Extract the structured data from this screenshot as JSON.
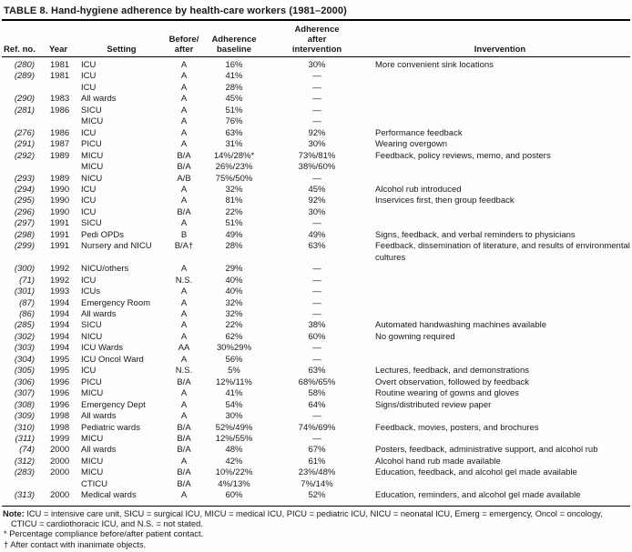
{
  "title": "TABLE 8. Hand-hygiene adherence by health-care workers (1981–2000)",
  "table": {
    "headers": {
      "ref_no": "Ref. no.",
      "year": "Year",
      "setting": "Setting",
      "before_after": "Before/\nafter",
      "adherence_baseline": "Adherence\nbaseline",
      "adherence_after": "Adherence\nafter\nintervention",
      "intervention": "Invervention"
    },
    "rows": [
      [
        "(280)",
        "1981",
        "ICU",
        "A",
        "16%",
        "30%",
        "More convenient sink locations"
      ],
      [
        "(289)",
        "1981",
        "ICU",
        "A",
        "41%",
        "—",
        ""
      ],
      [
        "",
        "",
        "ICU",
        "A",
        "28%",
        "—",
        ""
      ],
      [
        "(290)",
        "1983",
        "All wards",
        "A",
        "45%",
        "—",
        ""
      ],
      [
        "(281)",
        "1986",
        "SICU",
        "A",
        "51%",
        "—",
        ""
      ],
      [
        "",
        "",
        "MICU",
        "A",
        "76%",
        "—",
        ""
      ],
      [
        "(276)",
        "1986",
        "ICU",
        "A",
        "63%",
        "92%",
        "Performance feedback"
      ],
      [
        "(291)",
        "1987",
        "PICU",
        "A",
        "31%",
        "30%",
        "Wearing overgown"
      ],
      [
        "(292)",
        "1989",
        "MICU",
        "B/A",
        "14%/28%*",
        "73%/81%",
        "Feedback, policy reviews, memo, and posters"
      ],
      [
        "",
        "",
        "MICU",
        "B/A",
        "26%/23%",
        "38%/60%",
        ""
      ],
      [
        "(293)",
        "1989",
        "NICU",
        "A/B",
        "75%/50%",
        "—",
        ""
      ],
      [
        "(294)",
        "1990",
        "ICU",
        "A",
        "32%",
        "45%",
        "Alcohol rub introduced"
      ],
      [
        "(295)",
        "1990",
        "ICU",
        "A",
        "81%",
        "92%",
        "Inservices first, then group feedback"
      ],
      [
        "(296)",
        "1990",
        "ICU",
        "B/A",
        "22%",
        "30%",
        ""
      ],
      [
        "(297)",
        "1991",
        "SICU",
        "A",
        "51%",
        "—",
        ""
      ],
      [
        "(298)",
        "1991",
        "Pedi OPDs",
        "B",
        "49%",
        "49%",
        "Signs, feedback, and verbal reminders to physicians"
      ],
      [
        "(299)",
        "1991",
        "Nursery and NICU",
        "B/A†",
        "28%",
        "63%",
        "Feedback, dissemination of literature, and results of environmental cultures"
      ],
      [
        "(300)",
        "1992",
        "NICU/others",
        "A",
        "29%",
        "—",
        ""
      ],
      [
        "(71)",
        "1992",
        "ICU",
        "N.S.",
        "40%",
        "—",
        ""
      ],
      [
        "(301)",
        "1993",
        "ICUs",
        "A",
        "40%",
        "—",
        ""
      ],
      [
        "(87)",
        "1994",
        "Emergency Room",
        "A",
        "32%",
        "—",
        ""
      ],
      [
        "(86)",
        "1994",
        "All wards",
        "A",
        "32%",
        "—",
        ""
      ],
      [
        "(285)",
        "1994",
        "SICU",
        "A",
        "22%",
        "38%",
        "Automated handwashing machines available"
      ],
      [
        "(302)",
        "1994",
        "NICU",
        "A",
        "62%",
        "60%",
        "No gowning required"
      ],
      [
        "(303)",
        "1994",
        "ICU Wards",
        "AA",
        "30%29%",
        "—",
        ""
      ],
      [
        "(304)",
        "1995",
        "ICU Oncol Ward",
        "A",
        "56%",
        "—",
        ""
      ],
      [
        "(305)",
        "1995",
        "ICU",
        "N.S.",
        "5%",
        "63%",
        "Lectures, feedback, and demonstrations"
      ],
      [
        "(306)",
        "1996",
        "PICU",
        "B/A",
        "12%/11%",
        "68%/65%",
        "Overt observation, followed by feedback"
      ],
      [
        "(307)",
        "1996",
        "MICU",
        "A",
        "41%",
        "58%",
        "Routine wearing of gowns and gloves"
      ],
      [
        "(308)",
        "1996",
        "Emergency Dept",
        "A",
        "54%",
        "64%",
        "Signs/distributed review paper"
      ],
      [
        "(309)",
        "1998",
        "All wards",
        "A",
        "30%",
        "—",
        ""
      ],
      [
        "(310)",
        "1998",
        "Pediatric wards",
        "B/A",
        "52%/49%",
        "74%/69%",
        "Feedback, movies, posters, and brochures"
      ],
      [
        "(311)",
        "1999",
        "MICU",
        "B/A",
        "12%/55%",
        "—",
        ""
      ],
      [
        "(74)",
        "2000",
        "All wards",
        "B/A",
        "48%",
        "67%",
        "Posters, feedback, administrative support, and alcohol rub"
      ],
      [
        "(312)",
        "2000",
        "MICU",
        "A",
        "42%",
        "61%",
        "Alcohol hand rub made available"
      ],
      [
        "(283)",
        "2000",
        "MICU",
        "B/A",
        "10%/22%",
        "23%/48%",
        "Education, feedback, and alcohol gel made available"
      ],
      [
        "",
        "",
        "CTICU",
        "B/A",
        "4%/13%",
        "7%/14%",
        ""
      ],
      [
        "(313)",
        "2000",
        "Medical wards",
        "A",
        "60%",
        "52%",
        "Education, reminders, and alcohol gel made available"
      ]
    ]
  },
  "footnotes": {
    "note_label": "Note:",
    "note_text": " ICU = intensive care unit, SICU = surgical ICU, MICU = medical ICU, PICU = pediatric ICU, NICU = neonatal ICU, Emerg = emergency, Oncol = oncology, CTICU = cardiothoracic ICU, and N.S. = not stated.",
    "asterisk_note": "* Percentage compliance before/after patient contact.",
    "dagger_note": "† After contact with inanimate objects."
  }
}
